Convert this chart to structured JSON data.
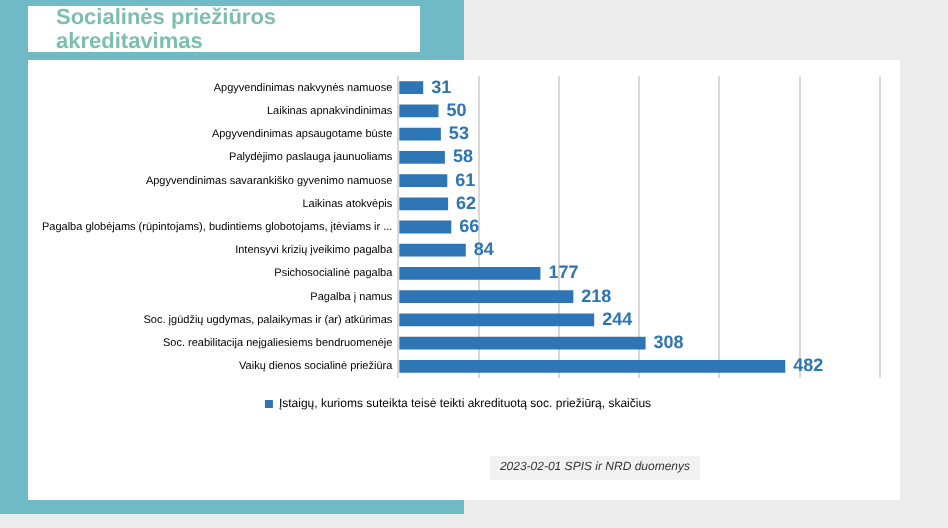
{
  "chart_data": {
    "type": "bar",
    "orientation": "horizontal",
    "title": "Socialinės priežiūros akreditavimas",
    "categories": [
      "Apgyvendinimas nakvynės namuose",
      "Laikinas apnakvindinimas",
      "Apgyvendinimas apsaugotame būste",
      "Palydėjimo paslauga jaunuoliams",
      "Apgyvendinimas savarankiško gyvenimo namuose",
      "Laikinas atokvėpis",
      "Pagalba globėjams (rūpintojams), budintiems globotojams, įtėviams ir ...",
      "Intensyvi krizių įveikimo pagalba",
      "Psichosocialinė pagalba",
      "Pagalba į namus",
      "Soc. įgūdžių ugdymas, palaikymas ir (ar) atkūrimas",
      "Soc. reabilitacija neįgaliesiems bendruomenėje",
      "Vaikų dienos socialinė priežiūra"
    ],
    "series": [
      {
        "name": "Įstaigų, kurioms suteikta teisė teikti akredituotą soc. priežiūrą, skaičius",
        "color": "#2e75b6",
        "values": [
          31,
          50,
          53,
          58,
          61,
          62,
          66,
          84,
          177,
          218,
          244,
          308,
          482
        ]
      }
    ],
    "xlim": [
      0,
      600
    ],
    "xticks": [
      {
        "value": 0,
        "label": null
      },
      {
        "value": 100,
        "label": null
      },
      {
        "value": 200,
        "label": null
      },
      {
        "value": 300,
        "label": null
      },
      {
        "value": 400,
        "label": null
      },
      {
        "value": 500,
        "label": null
      },
      {
        "value": 600,
        "label": null
      }
    ],
    "tick_labels": "y",
    "grid": "x",
    "legend": "bottom",
    "data_labels": true,
    "annotations": [
      "2023-02-01 SPIS ir NRD duomenys"
    ]
  }
}
